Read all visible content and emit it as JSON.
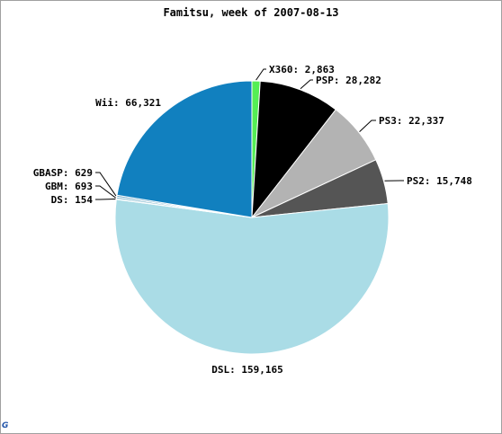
{
  "chart_data": {
    "type": "pie",
    "title": "Famitsu, week of 2007-08-13",
    "slices": [
      {
        "label": "X360",
        "display": "2,863",
        "value": 2863,
        "color": "#55ee55"
      },
      {
        "label": "PSP",
        "display": "28,282",
        "value": 28282,
        "color": "#000000"
      },
      {
        "label": "PS3",
        "display": "22,337",
        "value": 22337,
        "color": "#b3b3b3"
      },
      {
        "label": "PS2",
        "display": "15,748",
        "value": 15748,
        "color": "#555555"
      },
      {
        "label": "DSL",
        "display": "159,165",
        "value": 159165,
        "color": "#aadce6"
      },
      {
        "label": "DS",
        "display": "154",
        "value": 154,
        "color": "#9cc9d9"
      },
      {
        "label": "GBM",
        "display": "693",
        "value": 693,
        "color": "#88bcd0"
      },
      {
        "label": "GBASP",
        "display": "629",
        "value": 629,
        "color": "#6aa6c6"
      },
      {
        "label": "Wii",
        "display": "66,321",
        "value": 66321,
        "color": "#1180bf"
      }
    ]
  },
  "corner_logo": {
    "text": "G",
    "color": "#2255aa"
  }
}
